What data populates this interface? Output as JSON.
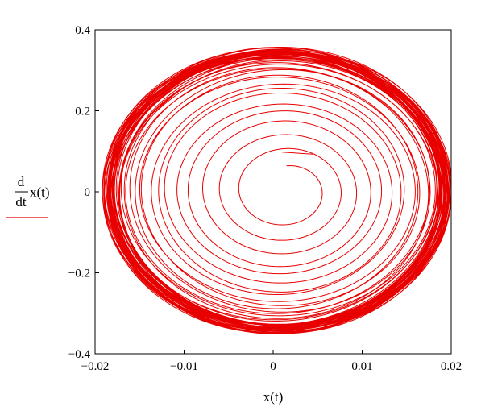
{
  "chart_data": {
    "type": "line",
    "title": "",
    "xlabel": "x(t)",
    "ylabel": {
      "d": "d",
      "dt": "dt",
      "expr": "x(t)"
    },
    "xlim": [
      -0.02,
      0.02
    ],
    "ylim": [
      -0.4,
      0.4
    ],
    "x_ticks": [
      -0.02,
      -0.01,
      0,
      0.01,
      0.02
    ],
    "x_tick_labels": [
      "−0.02",
      "−0.01",
      "0",
      "0.01",
      "0.02"
    ],
    "y_ticks": [
      -0.4,
      -0.2,
      0,
      0.2,
      0.4
    ],
    "y_tick_labels": [
      "−0.4",
      "−0.2",
      "0",
      "0.2",
      "0.4"
    ],
    "grid": false,
    "legend": "left",
    "colors": {
      "series": "#e80000",
      "axes": "#000000"
    },
    "series": [
      {
        "style": "phase-portrait spiral converging to limit cycle",
        "start": [
          0.001,
          0.098
        ],
        "limit_cycle": {
          "x_range": [
            -0.0185,
            0.0195
          ],
          "y_range": [
            -0.34,
            0.345
          ]
        }
      }
    ]
  }
}
